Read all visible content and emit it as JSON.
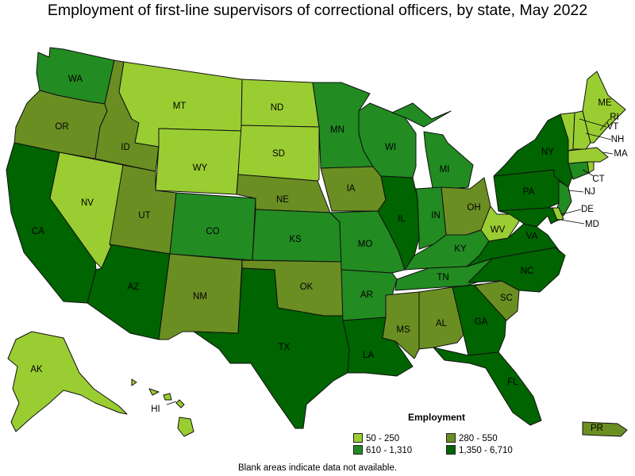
{
  "title": "Employment of first-line supervisors of correctional officers, by state, May 2022",
  "legend": {
    "title": "Employment",
    "bins": [
      {
        "label": "50 - 250",
        "color": "#9acd32"
      },
      {
        "label": "280 - 550",
        "color": "#6b8e23"
      },
      {
        "label": "610 - 1,310",
        "color": "#228b22"
      },
      {
        "label": "1,350 - 6,710",
        "color": "#006400"
      }
    ]
  },
  "note": "Blank areas indicate data not available.",
  "states": [
    {
      "id": "WA",
      "label": "WA",
      "bin": 2
    },
    {
      "id": "OR",
      "label": "OR",
      "bin": 1
    },
    {
      "id": "CA",
      "label": "CA",
      "bin": 3
    },
    {
      "id": "NV",
      "label": "NV",
      "bin": 0
    },
    {
      "id": "ID",
      "label": "ID",
      "bin": 1
    },
    {
      "id": "MT",
      "label": "MT",
      "bin": 0
    },
    {
      "id": "WY",
      "label": "WY",
      "bin": 0
    },
    {
      "id": "UT",
      "label": "UT",
      "bin": 1
    },
    {
      "id": "AZ",
      "label": "AZ",
      "bin": 3
    },
    {
      "id": "CO",
      "label": "CO",
      "bin": 2
    },
    {
      "id": "NM",
      "label": "NM",
      "bin": 1
    },
    {
      "id": "ND",
      "label": "ND",
      "bin": 0
    },
    {
      "id": "SD",
      "label": "SD",
      "bin": 0
    },
    {
      "id": "NE",
      "label": "NE",
      "bin": 1
    },
    {
      "id": "KS",
      "label": "KS",
      "bin": 2
    },
    {
      "id": "OK",
      "label": "OK",
      "bin": 1
    },
    {
      "id": "TX",
      "label": "TX",
      "bin": 3
    },
    {
      "id": "MN",
      "label": "MN",
      "bin": 2
    },
    {
      "id": "IA",
      "label": "IA",
      "bin": 1
    },
    {
      "id": "MO",
      "label": "MO",
      "bin": 2
    },
    {
      "id": "AR",
      "label": "AR",
      "bin": 2
    },
    {
      "id": "LA",
      "label": "LA",
      "bin": 3
    },
    {
      "id": "WI",
      "label": "WI",
      "bin": 2
    },
    {
      "id": "IL",
      "label": "IL",
      "bin": 3
    },
    {
      "id": "MI",
      "label": "MI",
      "bin": 2
    },
    {
      "id": "IN",
      "label": "IN",
      "bin": 2
    },
    {
      "id": "OH",
      "label": "OH",
      "bin": 1
    },
    {
      "id": "KY",
      "label": "KY",
      "bin": 2
    },
    {
      "id": "TN",
      "label": "TN",
      "bin": 2
    },
    {
      "id": "MS",
      "label": "MS",
      "bin": 1
    },
    {
      "id": "AL",
      "label": "AL",
      "bin": 1
    },
    {
      "id": "GA",
      "label": "GA",
      "bin": 3
    },
    {
      "id": "FL",
      "label": "FL",
      "bin": 3
    },
    {
      "id": "SC",
      "label": "SC",
      "bin": 1
    },
    {
      "id": "NC",
      "label": "NC",
      "bin": 3
    },
    {
      "id": "VA",
      "label": "VA",
      "bin": 3
    },
    {
      "id": "WV",
      "label": "WV",
      "bin": 0
    },
    {
      "id": "PA",
      "label": "PA",
      "bin": 3
    },
    {
      "id": "NY",
      "label": "NY",
      "bin": 3
    },
    {
      "id": "NJ",
      "label": "NJ",
      "bin": 2
    },
    {
      "id": "DE",
      "label": "DE",
      "bin": 0
    },
    {
      "id": "MD",
      "label": "MD",
      "bin": 3
    },
    {
      "id": "CT",
      "label": "CT",
      "bin": 2
    },
    {
      "id": "RI",
      "label": "RI",
      "bin": 0
    },
    {
      "id": "MA",
      "label": "MA",
      "bin": 0
    },
    {
      "id": "VT",
      "label": "VT",
      "bin": 0
    },
    {
      "id": "NH",
      "label": "NH",
      "bin": 0
    },
    {
      "id": "ME",
      "label": "ME",
      "bin": 0
    },
    {
      "id": "AK",
      "label": "AK",
      "bin": 0
    },
    {
      "id": "HI",
      "label": "HI",
      "bin": 0
    },
    {
      "id": "PR",
      "label": "PR",
      "bin": 1
    }
  ]
}
